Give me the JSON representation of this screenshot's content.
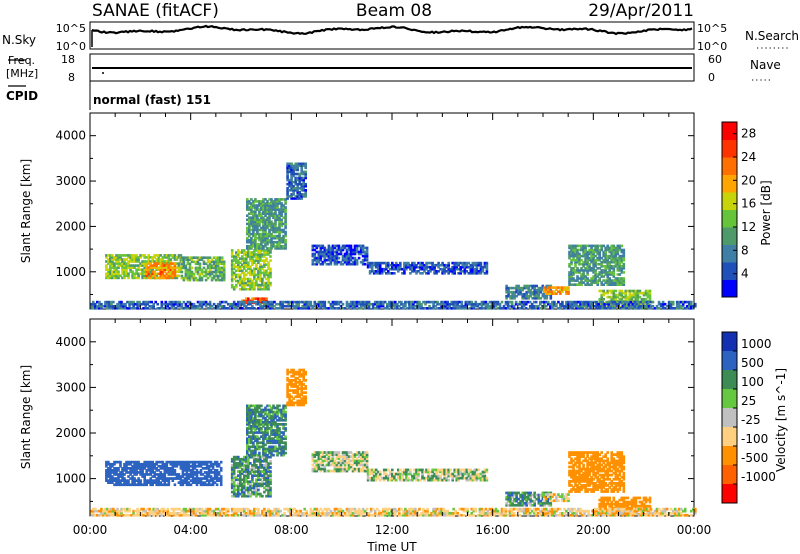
{
  "header": {
    "radar": "SANAE (fitACF)",
    "beam": "Beam 08",
    "date": "29/Apr/2011"
  },
  "noise_panel": {
    "left_label": "N.Sky",
    "right_label": "N.Search",
    "left_ticks": [
      "10^5",
      "10^0"
    ],
    "right_ticks": [
      "10^5",
      "10^0"
    ]
  },
  "freq_panel": {
    "left_label_line1": "Freq.",
    "left_label_line2": "[MHz]",
    "right_label": "Nave",
    "left_ticks": [
      "18",
      "8"
    ],
    "right_ticks": [
      "60",
      "0"
    ]
  },
  "cpid_panel": {
    "label": "CPID",
    "text": "normal (fast) 151"
  },
  "colors": {
    "power": [
      "#0000ff",
      "#1f4fb8",
      "#3f7fa6",
      "#4f9a6a",
      "#66c43a",
      "#c8d40a",
      "#ffa500",
      "#ff7000",
      "#ff3300",
      "#ff0000"
    ],
    "velocity": [
      "#1230b0",
      "#2d63c0",
      "#3d8b55",
      "#66c840",
      "#c0c0c0",
      "#ffd080",
      "#ff9000",
      "#ff6000",
      "#ff0000"
    ]
  },
  "chart_data": [
    {
      "type": "heatmap",
      "title": "",
      "xlabel": "Time UT",
      "ylabel": "Slant Range [km]",
      "xlim": [
        "00:00",
        "24:00"
      ],
      "ylim": [
        180,
        4500
      ],
      "x_ticks": [
        "00:00",
        "04:00",
        "08:00",
        "12:00",
        "16:00",
        "20:00",
        "00:00"
      ],
      "y_ticks": [
        1000,
        2000,
        3000,
        4000
      ],
      "colorbar": {
        "label": "Power [dB]",
        "ticks": [
          4,
          8,
          12,
          16,
          20,
          24,
          28
        ],
        "range": [
          0,
          30
        ]
      },
      "echo_regions": [
        {
          "t_start": 0.6,
          "t_end": 3.6,
          "r_min": 850,
          "r_max": 1350,
          "value": 14
        },
        {
          "t_start": 2.2,
          "t_end": 3.4,
          "r_min": 850,
          "r_max": 1200,
          "value": 21
        },
        {
          "t_start": 3.6,
          "t_end": 5.3,
          "r_min": 800,
          "r_max": 1300,
          "value": 12
        },
        {
          "t_start": 5.6,
          "t_end": 7.2,
          "r_min": 600,
          "r_max": 1500,
          "value": 14
        },
        {
          "t_start": 6.0,
          "t_end": 7.0,
          "r_min": 300,
          "r_max": 400,
          "value": 24
        },
        {
          "t_start": 6.2,
          "t_end": 7.8,
          "r_min": 1500,
          "r_max": 2600,
          "value": 10
        },
        {
          "t_start": 7.8,
          "t_end": 8.6,
          "r_min": 2600,
          "r_max": 3400,
          "value": 6
        },
        {
          "t_start": 8.8,
          "t_end": 11.0,
          "r_min": 1150,
          "r_max": 1600,
          "value": 5
        },
        {
          "t_start": 11.0,
          "t_end": 15.8,
          "r_min": 950,
          "r_max": 1200,
          "value": 5
        },
        {
          "t_start": 16.5,
          "t_end": 18.3,
          "r_min": 400,
          "r_max": 700,
          "value": 8
        },
        {
          "t_start": 18.0,
          "t_end": 19.0,
          "r_min": 500,
          "r_max": 650,
          "value": 20
        },
        {
          "t_start": 19.0,
          "t_end": 21.2,
          "r_min": 700,
          "r_max": 1600,
          "value": 10
        },
        {
          "t_start": 20.2,
          "t_end": 22.2,
          "r_min": 200,
          "r_max": 600,
          "value": 14
        },
        {
          "t_start": 0.0,
          "t_end": 24.0,
          "r_min": 180,
          "r_max": 320,
          "value": 6
        }
      ]
    },
    {
      "type": "heatmap",
      "title": "",
      "xlabel": "Time UT",
      "ylabel": "Slant Range [km]",
      "xlim": [
        "00:00",
        "24:00"
      ],
      "ylim": [
        180,
        4500
      ],
      "x_ticks": [
        "00:00",
        "04:00",
        "08:00",
        "12:00",
        "16:00",
        "20:00",
        "00:00"
      ],
      "y_ticks": [
        1000,
        2000,
        3000,
        4000
      ],
      "colorbar": {
        "label": "Velocity [m s^-1]",
        "ticks": [
          1000,
          500,
          100,
          25,
          -25,
          -100,
          -500,
          -1000
        ]
      },
      "echo_regions": [
        {
          "t_start": 0.6,
          "t_end": 5.2,
          "r_min": 850,
          "r_max": 1350,
          "value": 300
        },
        {
          "t_start": 5.6,
          "t_end": 7.2,
          "r_min": 600,
          "r_max": 1500,
          "value": 60
        },
        {
          "t_start": 6.2,
          "t_end": 7.8,
          "r_min": 1500,
          "r_max": 2600,
          "value": 80
        },
        {
          "t_start": 7.8,
          "t_end": 8.6,
          "r_min": 2600,
          "r_max": 3400,
          "value": -300
        },
        {
          "t_start": 8.8,
          "t_end": 11.0,
          "r_min": 1150,
          "r_max": 1600,
          "value": 0
        },
        {
          "t_start": 11.0,
          "t_end": 15.8,
          "r_min": 950,
          "r_max": 1200,
          "value": 0
        },
        {
          "t_start": 16.5,
          "t_end": 18.3,
          "r_min": 400,
          "r_max": 700,
          "value": 60
        },
        {
          "t_start": 18.0,
          "t_end": 19.0,
          "r_min": 500,
          "r_max": 650,
          "value": -60
        },
        {
          "t_start": 19.0,
          "t_end": 21.2,
          "r_min": 700,
          "r_max": 1600,
          "value": -300
        },
        {
          "t_start": 20.2,
          "t_end": 22.2,
          "r_min": 200,
          "r_max": 600,
          "value": -250
        },
        {
          "t_start": 0.0,
          "t_end": 24.0,
          "r_min": 180,
          "r_max": 320,
          "value": -60
        }
      ]
    }
  ]
}
